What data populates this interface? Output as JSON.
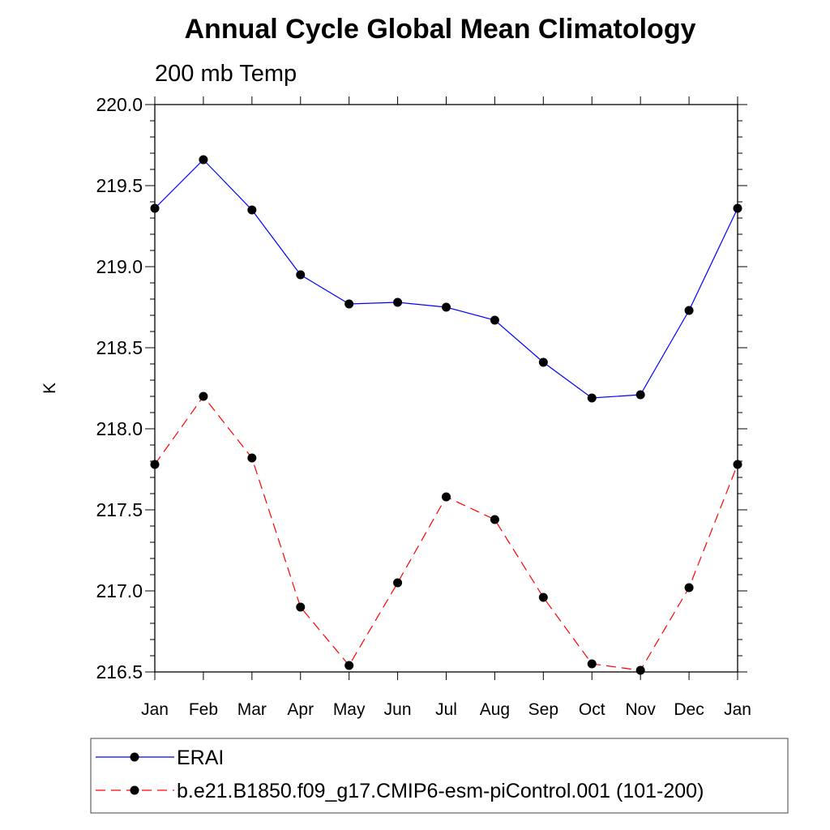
{
  "chart_data": {
    "type": "line",
    "title": "Annual Cycle Global Mean Climatology",
    "subtitle": "200 mb Temp",
    "ylabel": "K",
    "xlabel": "",
    "categories": [
      "Jan",
      "Feb",
      "Mar",
      "Apr",
      "May",
      "Jun",
      "Jul",
      "Aug",
      "Sep",
      "Oct",
      "Nov",
      "Dec",
      "Jan"
    ],
    "ylim": [
      216.5,
      220.0
    ],
    "yticks": [
      "216.5",
      "217.0",
      "217.5",
      "218.0",
      "218.5",
      "219.0",
      "219.5",
      "220.0"
    ],
    "series": [
      {
        "name": "ERAI",
        "color": "#0000ff",
        "dash": "solid",
        "values": [
          219.36,
          219.66,
          219.35,
          218.95,
          218.77,
          218.78,
          218.75,
          218.67,
          218.41,
          218.19,
          218.21,
          218.73,
          219.36
        ]
      },
      {
        "name": "b.e21.B1850.f09_g17.CMIP6-esm-piControl.001 (101-200)",
        "color": "#ff0000",
        "dash": "dashed",
        "values": [
          217.78,
          218.2,
          217.82,
          216.9,
          216.54,
          217.05,
          217.58,
          217.44,
          216.96,
          216.55,
          216.51,
          217.02,
          217.78
        ]
      }
    ],
    "legend_position": "bottom"
  }
}
